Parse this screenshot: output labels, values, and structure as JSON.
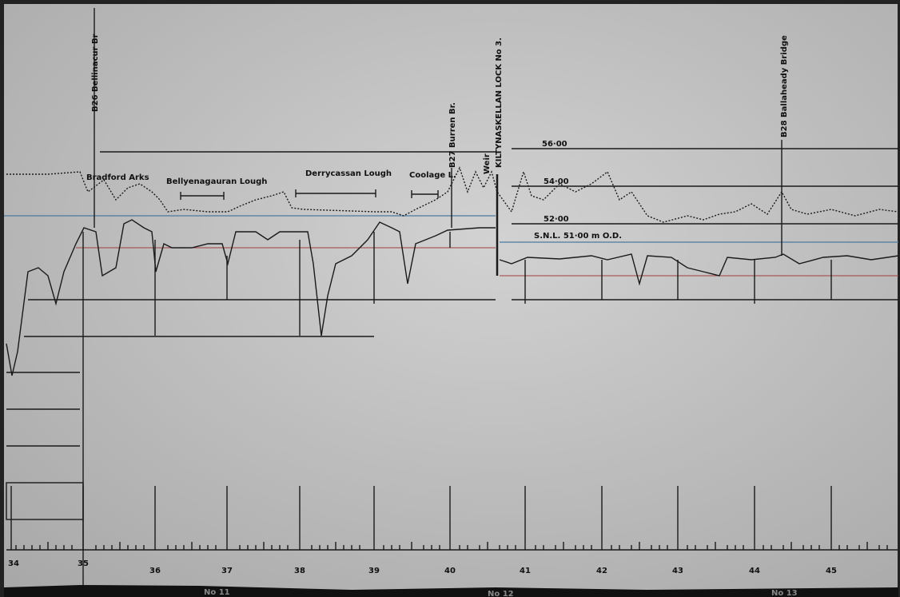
{
  "places": [
    {
      "label": "B26 Bellinacur Br"
    },
    {
      "label": "Bradford Arks"
    },
    {
      "label": "Bellyenagauran Lough"
    },
    {
      "label": "Derrycassan Lough"
    },
    {
      "label": "Coolage L."
    },
    {
      "label": "B27 Burren Br."
    },
    {
      "label": "Weir"
    },
    {
      "label": "KILTYNASKELLAN LOCK No 3."
    },
    {
      "label": "B28 Ballaheady Bridge"
    }
  ],
  "levels": [
    "56·00",
    "54·00",
    "52·00",
    "S.N.L. 51·00 m O.D."
  ],
  "chainage": [
    "34",
    "35",
    "36",
    "37",
    "38",
    "39",
    "40",
    "41",
    "42",
    "43",
    "44",
    "45"
  ],
  "sheets": [
    "No 11",
    "No 12",
    "No 13"
  ]
}
